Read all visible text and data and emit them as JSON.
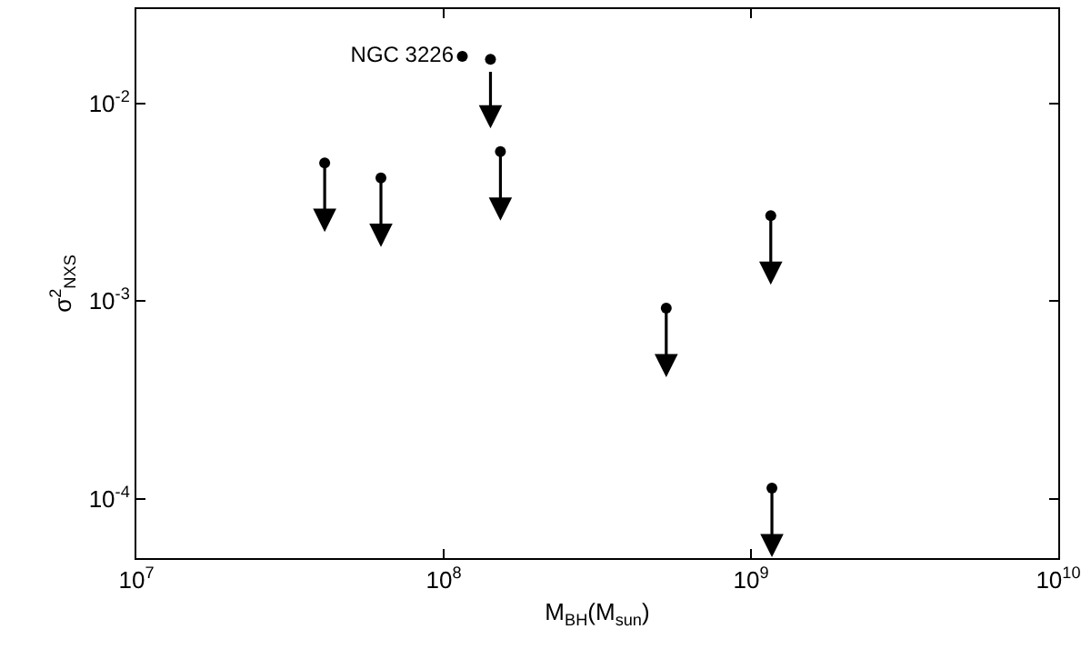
{
  "chart_data": {
    "type": "scatter",
    "xlabel": "M$_{BH}$(M$_{sun}$)",
    "ylabel": "σ$^{2}$$_{NXS}$",
    "log": "xy",
    "grid": false,
    "marker": "circle",
    "series": [
      {
        "color": "#000000",
        "x": [
          41000000.0,
          62500000.0,
          142000000.0,
          153000000.0,
          530000000.0,
          1160000000.0,
          1170000000.0
        ],
        "values": [
          0.005,
          0.0042,
          0.0167,
          0.0057,
          0.00092,
          0.0027,
          0.000113
        ]
      },
      {
        "name": "NGC 3226",
        "color": "#000000",
        "x": [
          115000000.0
        ],
        "values": [
          0.0173
        ]
      }
    ],
    "xlim": [
      10000000.0,
      10000000000.0
    ],
    "xticks": [
      {
        "value": 10000000.0,
        "label": "10$^{7}$"
      },
      {
        "value": 100000000.0,
        "label": "10$^{8}$"
      },
      {
        "value": 1000000000.0,
        "label": "10$^{9}$"
      },
      {
        "value": 10000000000.0,
        "label": "10$^{10}$"
      }
    ],
    "ylim": [
      5e-05,
      0.03
    ],
    "yticks": [
      {
        "value": 0.0001,
        "label": "10$^{-4}$"
      },
      {
        "value": 0.001,
        "label": "10$^{-3}$"
      },
      {
        "value": 0.01,
        "label": "10$^{-2}$"
      }
    ]
  }
}
